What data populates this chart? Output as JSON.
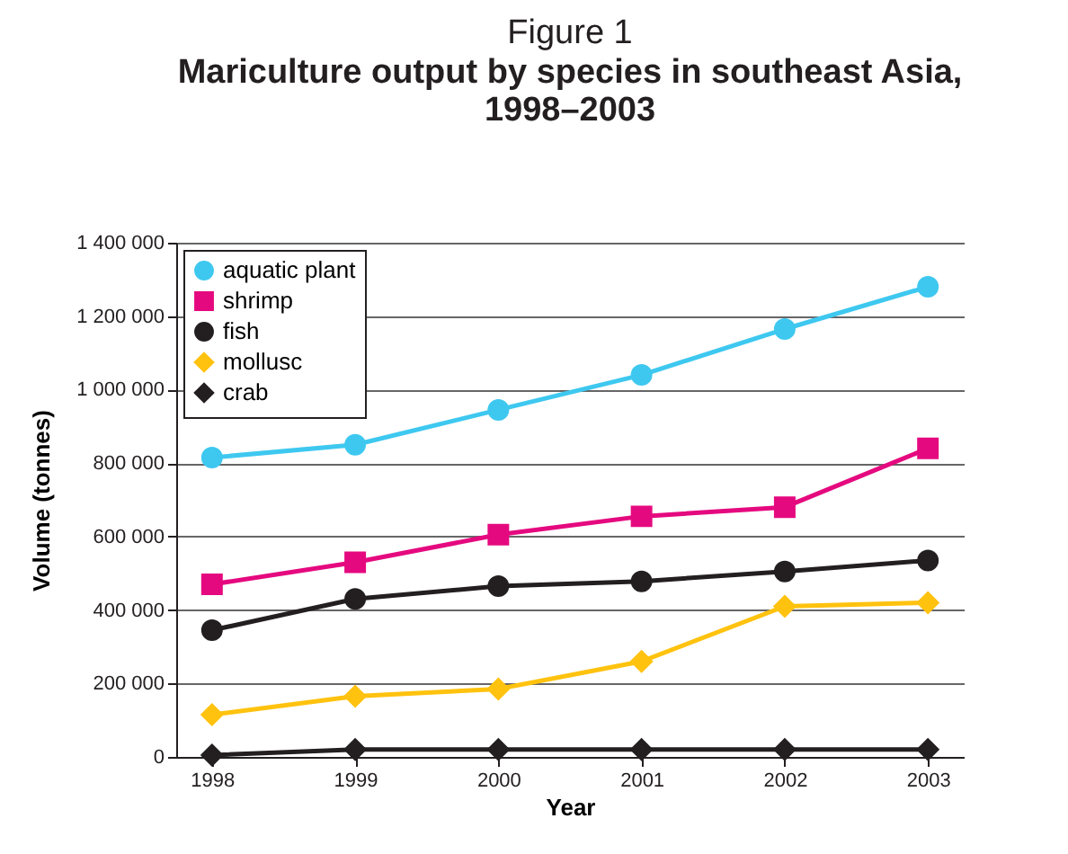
{
  "chart_data": {
    "type": "line",
    "title": "Figure 1",
    "subtitle": "Mariculture output by species in southeast Asia, 1998–2003",
    "xlabel": "Year",
    "ylabel": "Volume (tonnes)",
    "categories": [
      "1998",
      "1999",
      "2000",
      "2001",
      "2002",
      "2003"
    ],
    "series": [
      {
        "name": "aquatic plant",
        "color": "#3ec8f0",
        "marker": "circle",
        "values": [
          815000,
          850000,
          945000,
          1040000,
          1165000,
          1280000
        ]
      },
      {
        "name": "shrimp",
        "color": "#e5097f",
        "marker": "square",
        "values": [
          470000,
          530000,
          605000,
          655000,
          680000,
          840000
        ]
      },
      {
        "name": "fish",
        "color": "#231f20",
        "marker": "circle",
        "values": [
          345000,
          430000,
          465000,
          478000,
          505000,
          535000
        ]
      },
      {
        "name": "mollusc",
        "color": "#ffc20e",
        "marker": "diamond",
        "values": [
          115000,
          165000,
          185000,
          260000,
          410000,
          420000
        ]
      },
      {
        "name": "crab",
        "color": "#231f20",
        "marker": "diamond",
        "values": [
          5000,
          20000,
          20000,
          20000,
          20000,
          20000
        ]
      }
    ],
    "ylim": [
      0,
      1400000
    ],
    "yticks": [
      {
        "value": 0,
        "label": "0"
      },
      {
        "value": 200000,
        "label": "200 000"
      },
      {
        "value": 400000,
        "label": "400 000"
      },
      {
        "value": 600000,
        "label": "600 000"
      },
      {
        "value": 800000,
        "label": "800 000"
      },
      {
        "value": 1000000,
        "label": "1 000 000"
      },
      {
        "value": 1200000,
        "label": "1 200 000"
      },
      {
        "value": 1400000,
        "label": "1 400 000"
      }
    ],
    "grid": "y",
    "legend": "top left",
    "line_style": "solid"
  }
}
